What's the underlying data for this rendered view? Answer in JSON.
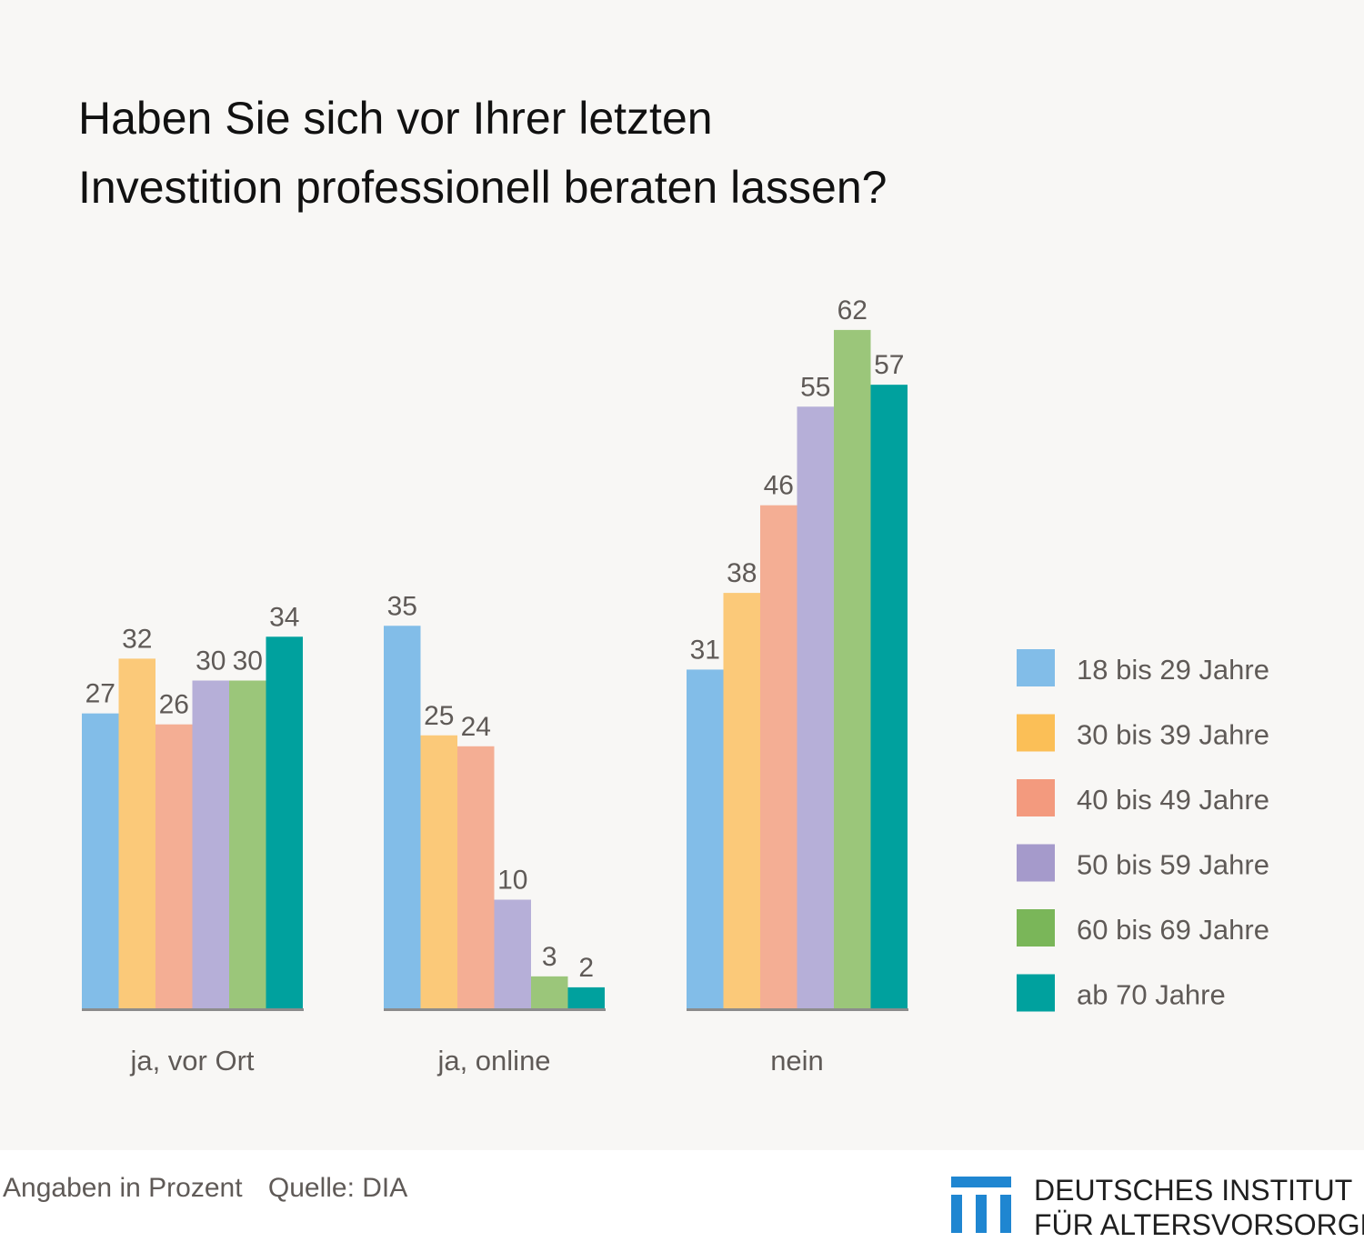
{
  "title_lines": [
    "Haben Sie sich vor Ihrer letzten",
    "Investition professionell beraten lassen?"
  ],
  "chart_data": {
    "type": "bar",
    "title": "Haben Sie sich vor Ihrer letzten Investition professionell beraten lassen?",
    "categories": [
      "ja, vor Ort",
      "ja, online",
      "nein"
    ],
    "series": [
      {
        "name": "18 bis 29 Jahre",
        "color": "#82bde8",
        "values": [
          27,
          35,
          31
        ]
      },
      {
        "name": "30 bis 39 Jahre",
        "color": "#fbc979",
        "values": [
          32,
          25,
          38
        ]
      },
      {
        "name": "40 bis 49 Jahre",
        "color": "#f4ae94",
        "values": [
          26,
          24,
          46
        ]
      },
      {
        "name": "50 bis 59 Jahre",
        "color": "#b6afd8",
        "values": [
          30,
          10,
          55
        ]
      },
      {
        "name": "60 bis 69 Jahre",
        "color": "#9bc67a",
        "values": [
          30,
          3,
          62
        ]
      },
      {
        "name": "ab 70 Jahre",
        "color": "#00a19e",
        "values": [
          34,
          2,
          57
        ]
      }
    ],
    "legend_colors": [
      "#82bde8",
      "#fbbf57",
      "#f39a7e",
      "#a59acb",
      "#7ab659",
      "#00a19e"
    ],
    "legend_position": "right",
    "grid": false,
    "baseline_color": "#8c8c8c"
  },
  "footer": {
    "note": "Angaben in Prozent",
    "source": "Quelle: DIA"
  },
  "organization": {
    "line1": "DEUTSCHES INSTITUT",
    "line2": "FÜR ALTERSVORSORGE",
    "logo_color": "#1f86d1"
  }
}
